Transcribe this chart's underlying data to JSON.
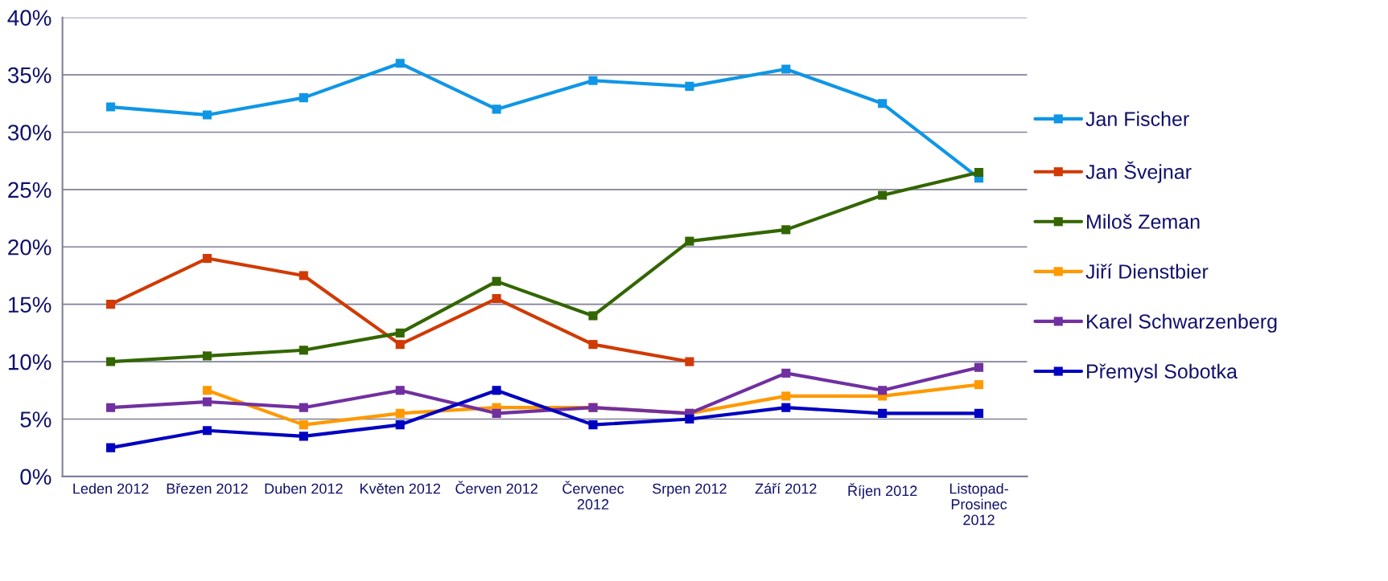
{
  "chart_data": {
    "type": "line",
    "categories": [
      "Leden 2012",
      "Březen 2012",
      "Duben 2012",
      "Květen 2012",
      "Červen 2012",
      "Červenec\n2012",
      "Srpen 2012",
      "Září 2012",
      "Říjen 2012",
      "Listopad-\nProsinec\n2012"
    ],
    "series": [
      {
        "name": "Jan Fischer",
        "color": "#0f96e6",
        "values": [
          32.2,
          31.5,
          33,
          36,
          32,
          34.5,
          34,
          35.5,
          32.5,
          26
        ]
      },
      {
        "name": "Jan Švejnar",
        "color": "#d03a04",
        "values": [
          15,
          19,
          17.5,
          11.5,
          15.5,
          11.5,
          10,
          null,
          null,
          null
        ]
      },
      {
        "name": "Miloš Zeman",
        "color": "#336600",
        "values": [
          10,
          10.5,
          11,
          12.5,
          17,
          14,
          20.5,
          21.5,
          24.5,
          26.5
        ]
      },
      {
        "name": "Jiří Dienstbier",
        "color": "#ff9900",
        "values": [
          null,
          7.5,
          4.5,
          5.5,
          6,
          6,
          5.5,
          7,
          7,
          8
        ]
      },
      {
        "name": "Karel Schwarzenberg",
        "color": "#7030a0",
        "values": [
          6,
          6.5,
          6,
          7.5,
          5.5,
          6,
          5.5,
          9,
          7.5,
          9.5
        ]
      },
      {
        "name": "Přemysl Sobotka",
        "color": "#0000c0",
        "values": [
          2.5,
          4,
          3.5,
          4.5,
          7.5,
          4.5,
          5,
          6,
          5.5,
          5.5
        ]
      }
    ],
    "ylim": [
      0,
      40
    ],
    "yticks": [
      {
        "value": 0,
        "label": "0%"
      },
      {
        "value": 5,
        "label": "5%"
      },
      {
        "value": 10,
        "label": "10%"
      },
      {
        "value": 15,
        "label": "15%"
      },
      {
        "value": 20,
        "label": "20%"
      },
      {
        "value": 25,
        "label": "25%"
      },
      {
        "value": 30,
        "label": "30%"
      },
      {
        "value": 35,
        "label": "35%"
      },
      {
        "value": 40,
        "label": "40%"
      }
    ],
    "grid": "y",
    "legend": "right",
    "marker": "square",
    "line_style": "solid"
  }
}
